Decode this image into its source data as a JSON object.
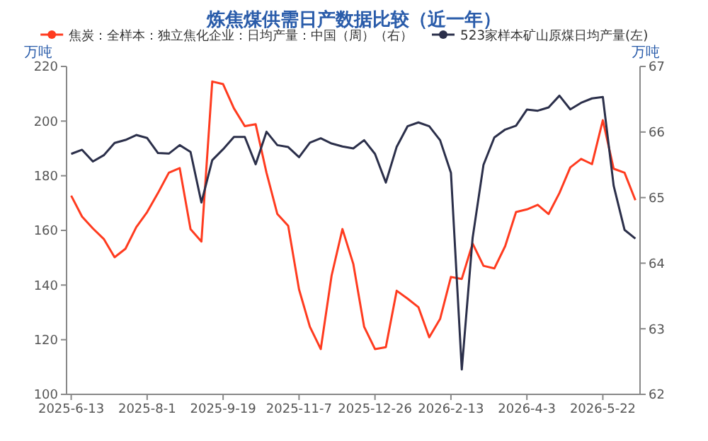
{
  "chart_data": {
    "type": "line",
    "title": "炼焦煤供需日产数据比较（近一年）",
    "ylabel": "万吨",
    "y2label": "万吨",
    "legend": "top",
    "grid": false,
    "marker": "none",
    "x": [
      "2025-06-13",
      "2025-06-20",
      "2025-06-27",
      "2025-07-04",
      "2025-07-11",
      "2025-07-18",
      "2025-07-25",
      "2025-08-01",
      "2025-08-08",
      "2025-08-15",
      "2025-08-22",
      "2025-08-29",
      "2025-09-05",
      "2025-09-12",
      "2025-09-19",
      "2025-09-26",
      "2025-10-03",
      "2025-10-10",
      "2025-10-17",
      "2025-10-24",
      "2025-10-31",
      "2025-11-07",
      "2025-11-14",
      "2025-11-21",
      "2025-11-28",
      "2025-12-05",
      "2025-12-12",
      "2025-12-19",
      "2025-12-26",
      "2026-01-02",
      "2026-01-09",
      "2026-01-16",
      "2026-01-23",
      "2026-01-30",
      "2026-02-06",
      "2026-02-13",
      "2026-02-20",
      "2026-02-27",
      "2026-03-06",
      "2026-03-13",
      "2026-03-20",
      "2026-03-27",
      "2026-04-03",
      "2026-04-10",
      "2026-04-17",
      "2026-04-24",
      "2026-05-01",
      "2026-05-08",
      "2026-05-15",
      "2026-05-22",
      "2026-05-29",
      "2026-06-05",
      "2026-06-12"
    ],
    "xlim": [
      "2025-06-10",
      "2026-06-15"
    ],
    "xticks": [
      {
        "value": "2025-06-13",
        "label": "2025-6-13"
      },
      {
        "value": "2025-08-01",
        "label": "2025-8-1"
      },
      {
        "value": "2025-09-19",
        "label": "2025-9-19"
      },
      {
        "value": "2025-11-07",
        "label": "2025-11-7"
      },
      {
        "value": "2025-12-26",
        "label": "2025-12-26"
      },
      {
        "value": "2026-02-13",
        "label": "2026-2-13"
      },
      {
        "value": "2026-04-03",
        "label": "2026-4-3"
      },
      {
        "value": "2026-05-22",
        "label": "2026-5-22"
      }
    ],
    "ylim": [
      100,
      220
    ],
    "yticks": [
      100,
      120,
      140,
      160,
      180,
      200,
      220
    ],
    "y2lim": [
      62,
      67
    ],
    "y2ticks": [
      62,
      63,
      64,
      65,
      66,
      67
    ],
    "series": [
      {
        "name": "焦炭：全样本：独立焦化企业：日均产量：中国（周）（右）",
        "color": "#ff3b1f",
        "axis": "y2",
        "values": [
          65.03,
          64.71,
          64.53,
          64.37,
          64.09,
          64.22,
          64.55,
          64.78,
          65.07,
          65.38,
          65.45,
          64.52,
          64.33,
          66.77,
          66.73,
          66.36,
          66.09,
          66.12,
          65.38,
          64.75,
          64.57,
          63.6,
          63.03,
          62.69,
          63.81,
          64.52,
          63.99,
          63.03,
          62.69,
          62.72,
          63.58,
          63.46,
          63.33,
          62.87,
          63.15,
          63.79,
          63.76,
          64.3,
          63.96,
          63.92,
          64.26,
          64.78,
          64.82,
          64.89,
          64.75,
          65.07,
          65.46,
          65.59,
          65.51,
          66.18,
          65.44,
          65.38,
          64.96
        ]
      },
      {
        "name": "523家样本矿山原煤日均产量(左)",
        "color": "#2b2f4a",
        "axis": "y",
        "values": [
          188.0,
          189.5,
          185.2,
          187.5,
          192.0,
          193.1,
          194.9,
          193.8,
          188.3,
          188.1,
          191.2,
          188.7,
          170.2,
          185.7,
          189.7,
          194.2,
          194.2,
          184.2,
          196.1,
          191.2,
          190.5,
          186.8,
          192.1,
          193.7,
          191.8,
          190.7,
          190.0,
          193.0,
          188.0,
          177.5,
          190.6,
          198.1,
          199.5,
          198.1,
          193.0,
          181.1,
          109.1,
          157.3,
          184.0,
          194.0,
          196.9,
          198.3,
          204.2,
          203.8,
          205.0,
          209.3,
          204.3,
          206.7,
          208.3,
          208.8,
          176.3,
          160.2,
          157.0
        ]
      }
    ]
  }
}
